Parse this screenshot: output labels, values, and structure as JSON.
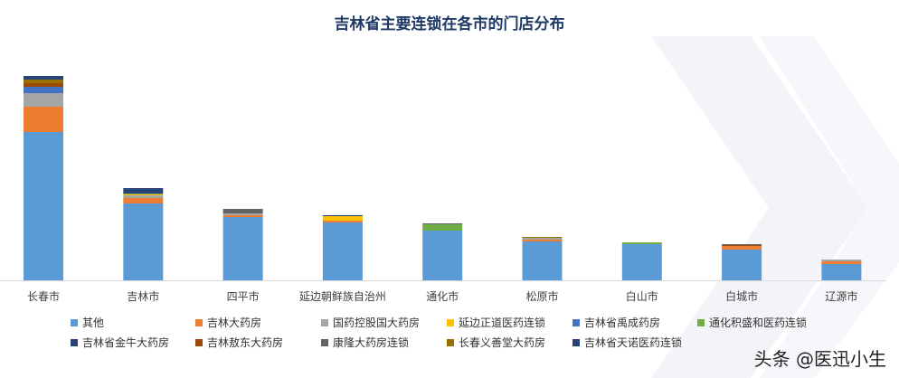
{
  "chart_data": {
    "type": "bar",
    "stacked": true,
    "title": "吉林省主要连锁在各市的门店分布",
    "categories": [
      "长春市",
      "吉林市",
      "四平市",
      "延边朝鲜族自治州",
      "通化市",
      "松原市",
      "白山市",
      "白城市",
      "辽源市"
    ],
    "series": [
      {
        "name": "其他",
        "color": "#5B9BD5",
        "values": [
          164,
          85,
          70,
          64,
          55,
          43,
          40,
          34,
          18
        ]
      },
      {
        "name": "吉林大药房",
        "color": "#ED7D31",
        "values": [
          28,
          6,
          2,
          2,
          0,
          2,
          0,
          4,
          3
        ]
      },
      {
        "name": "国药控股国大药房",
        "color": "#A5A5A5",
        "values": [
          15,
          3,
          2,
          0,
          0,
          2,
          0,
          0,
          2
        ]
      },
      {
        "name": "延边正道医药连锁",
        "color": "#FFC000",
        "values": [
          0,
          1,
          0,
          5,
          0,
          0,
          0,
          0,
          0
        ]
      },
      {
        "name": "吉林省禹成药房",
        "color": "#4472C4",
        "values": [
          7,
          0,
          0,
          0,
          0,
          0,
          0,
          0,
          0
        ]
      },
      {
        "name": "通化积盛和医药连锁",
        "color": "#70AD47",
        "values": [
          0,
          1,
          0,
          0,
          7,
          0,
          2,
          0,
          0
        ]
      },
      {
        "name": "吉林省金牛大药房",
        "color": "#264478",
        "values": [
          0,
          6,
          0,
          0,
          0,
          0,
          0,
          0,
          0
        ]
      },
      {
        "name": "吉林敖东大药房",
        "color": "#9E480E",
        "values": [
          4,
          0,
          0,
          0,
          0,
          0,
          0,
          1,
          0
        ]
      },
      {
        "name": "康隆大药房连锁",
        "color": "#636363",
        "values": [
          0,
          0,
          5,
          0,
          1,
          0,
          0,
          1,
          0
        ]
      },
      {
        "name": "长春义善堂大药房",
        "color": "#997300",
        "values": [
          4,
          0,
          0,
          0,
          0,
          1,
          0,
          0,
          0
        ]
      },
      {
        "name": "吉林省天诺医药连锁",
        "color": "#264478",
        "values": [
          4,
          0,
          0,
          1,
          0,
          0,
          0,
          0,
          0
        ]
      }
    ],
    "xlabel": "",
    "ylabel": "",
    "y_axis_visible": false,
    "grid": false,
    "legend_position": "bottom"
  },
  "watermark": "头条 @医迅小生"
}
